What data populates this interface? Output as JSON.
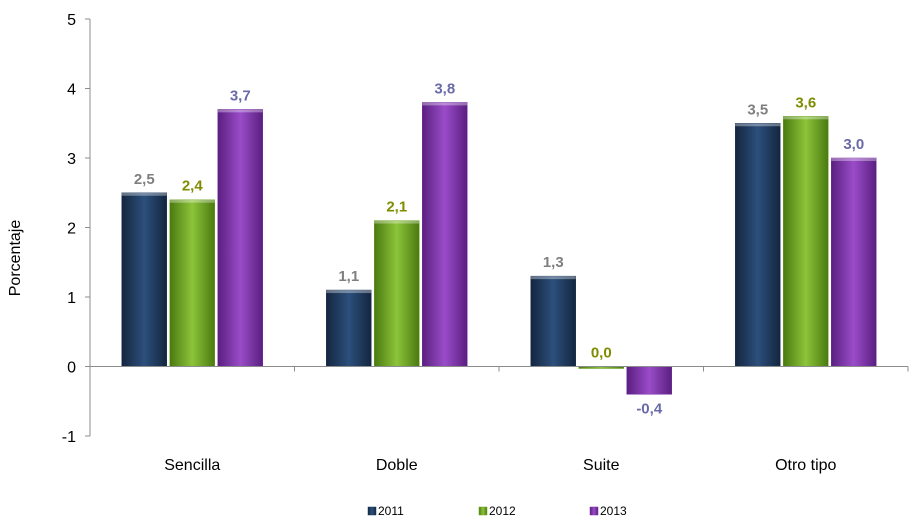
{
  "chart_data": {
    "type": "bar",
    "categories": [
      "Sencilla",
      "Doble",
      "Suite",
      "Otro tipo"
    ],
    "series": [
      {
        "name": "2011",
        "values": [
          2.5,
          1.1,
          1.3,
          3.5
        ],
        "labels": [
          "2,5",
          "1,1",
          "1,3",
          "3,5"
        ],
        "color": "#1f3a5f",
        "label_color": "#7f7f7f"
      },
      {
        "name": "2012",
        "values": [
          2.4,
          2.1,
          0.0,
          3.6
        ],
        "labels": [
          "2,4",
          "2,1",
          "0,0",
          "3,6"
        ],
        "color": "#6ea21e",
        "label_color": "#7f8c00"
      },
      {
        "name": "2013",
        "values": [
          3.7,
          3.8,
          -0.4,
          3.0
        ],
        "labels": [
          "3,7",
          "3,8",
          "-0,4",
          "3,0"
        ],
        "color": "#7b2fa6",
        "label_color": "#6a6aa8"
      }
    ],
    "ylabel": "Porcentaje",
    "ylim": [
      -1,
      5
    ],
    "yticks": [
      -1,
      0,
      1,
      2,
      3,
      4,
      5
    ],
    "legend_position": "bottom",
    "grid": false
  }
}
